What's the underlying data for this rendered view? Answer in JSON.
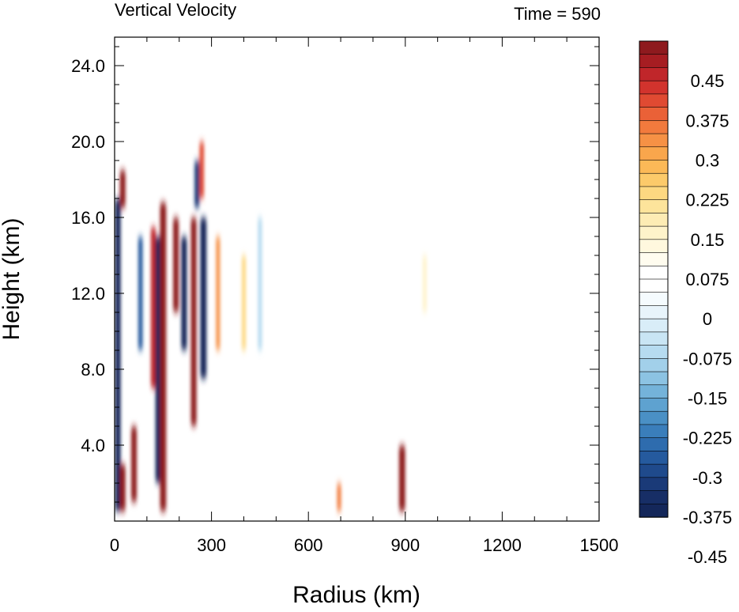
{
  "chart_data": {
    "type": "heatmap",
    "title": "Vertical Velocity",
    "subtitle": "Time = 590",
    "xlabel": "Radius (km)",
    "ylabel": "Height (km)",
    "xlim": [
      0,
      1500
    ],
    "ylim": [
      0,
      25.5
    ],
    "x_ticks": [
      0,
      300,
      600,
      900,
      1200,
      1500
    ],
    "x_tick_labels": [
      "0",
      "300",
      "600",
      "900",
      "1200",
      "1500"
    ],
    "y_ticks": [
      4,
      8,
      12,
      16,
      20,
      24
    ],
    "y_tick_labels": [
      "4.0",
      "8.0",
      "12.0",
      "16.0",
      "20.0",
      "24.0"
    ],
    "grid": false,
    "colorbar": {
      "placement": "right",
      "levels": 36,
      "min": -0.525,
      "max": 0.525,
      "tick_labels": [
        "0.45",
        "0.375",
        "0.3",
        "0.225",
        "0.15",
        "0.075",
        "0",
        "-0.075",
        "-0.15",
        "-0.225",
        "-0.3",
        "-0.375",
        "-0.45"
      ],
      "colors_top_to_bottom": [
        "#8e1a1e",
        "#a61d22",
        "#c0262a",
        "#d2332d",
        "#e04a32",
        "#ea6137",
        "#f27a3d",
        "#f69145",
        "#f9a64c",
        "#fbb957",
        "#fcca6a",
        "#fdd881",
        "#fde49b",
        "#fdecb4",
        "#fef3ca",
        "#fff8de",
        "#fffcef",
        "#ffffff",
        "#ffffff",
        "#f5fbfe",
        "#e8f4fb",
        "#d9edf8",
        "#c9e5f4",
        "#b6dbf0",
        "#a2d0ea",
        "#8cc3e3",
        "#74b3da",
        "#5ea2d0",
        "#4a90c5",
        "#3a7ebb",
        "#2e6cae",
        "#255a9e",
        "#1f4a8c",
        "#1a3a78",
        "#172e66",
        "#14275a"
      ]
    },
    "features": [
      {
        "x_km": 10,
        "z_range_km": [
          0.5,
          17
        ],
        "w": -0.5
      },
      {
        "x_km": 25,
        "z_range_km": [
          0.5,
          3
        ],
        "w": 0.5
      },
      {
        "x_km": 25,
        "z_range_km": [
          16.5,
          18.5
        ],
        "w": 0.5
      },
      {
        "x_km": 60,
        "z_range_km": [
          1,
          5
        ],
        "w": 0.5
      },
      {
        "x_km": 80,
        "z_range_km": [
          9,
          15
        ],
        "w": -0.4
      },
      {
        "x_km": 120,
        "z_range_km": [
          7,
          15.5
        ],
        "w": 0.45
      },
      {
        "x_km": 135,
        "z_range_km": [
          2,
          15
        ],
        "w": -0.5
      },
      {
        "x_km": 150,
        "z_range_km": [
          0.5,
          16.8
        ],
        "w": 0.55
      },
      {
        "x_km": 190,
        "z_range_km": [
          11,
          16
        ],
        "w": 0.5
      },
      {
        "x_km": 215,
        "z_range_km": [
          9,
          15
        ],
        "w": -0.5
      },
      {
        "x_km": 245,
        "z_range_km": [
          5,
          16
        ],
        "w": 0.5
      },
      {
        "x_km": 255,
        "z_range_km": [
          16.5,
          19
        ],
        "w": -0.45
      },
      {
        "x_km": 270,
        "z_range_km": [
          17,
          20
        ],
        "w": 0.4
      },
      {
        "x_km": 275,
        "z_range_km": [
          7.5,
          16
        ],
        "w": -0.55
      },
      {
        "x_km": 320,
        "z_range_km": [
          9,
          15
        ],
        "w": 0.3
      },
      {
        "x_km": 400,
        "z_range_km": [
          9,
          14
        ],
        "w": 0.2
      },
      {
        "x_km": 450,
        "z_range_km": [
          9,
          16
        ],
        "w": -0.15
      },
      {
        "x_km": 695,
        "z_range_km": [
          0.5,
          2
        ],
        "w": 0.35
      },
      {
        "x_km": 890,
        "z_range_km": [
          0.5,
          4
        ],
        "w": 0.55
      },
      {
        "x_km": 960,
        "z_range_km": [
          11,
          14
        ],
        "w": 0.1
      }
    ]
  }
}
